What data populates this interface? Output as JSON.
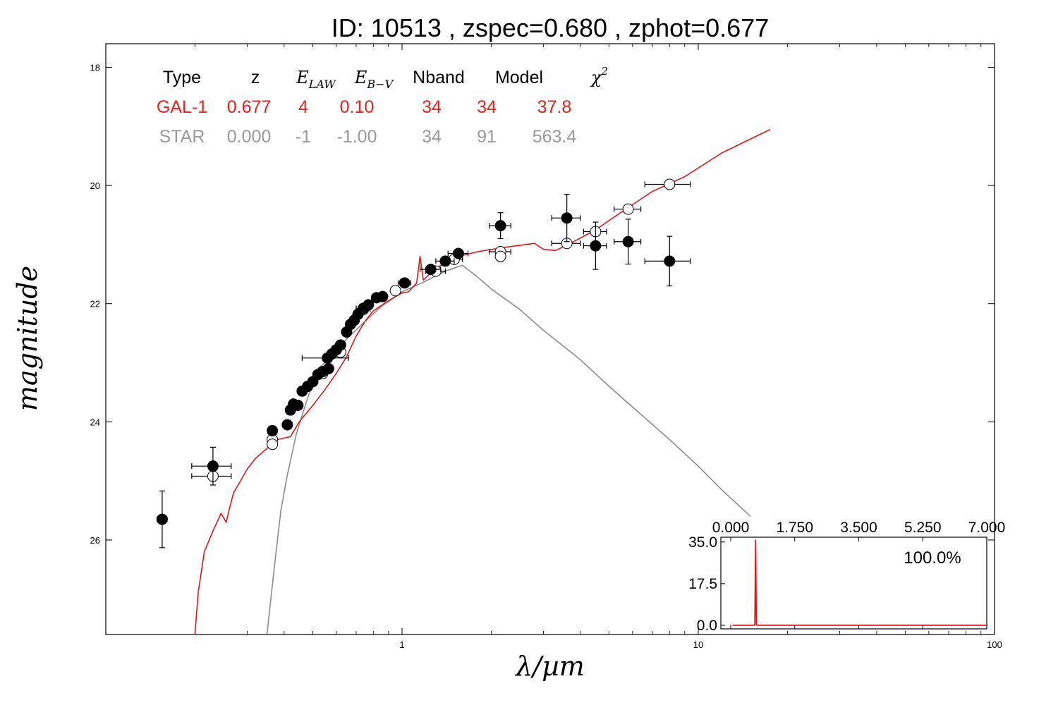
{
  "chart_data": [
    {
      "type": "scatter",
      "title": "ID:  10513 , zspec=0.680 , zphot=0.677",
      "xlabel": "λ/µm",
      "ylabel": "magnitude",
      "xscale": "log",
      "xlim": [
        0.1,
        100
      ],
      "ylim": [
        27.6,
        17.6
      ],
      "y_inverted": true,
      "x_ticks": [
        {
          "v": 1,
          "label": "1"
        },
        {
          "v": 10,
          "label": "10"
        },
        {
          "v": 100,
          "label": "100"
        }
      ],
      "y_ticks": [
        {
          "v": 18,
          "label": "18"
        },
        {
          "v": 20,
          "label": "20"
        },
        {
          "v": 22,
          "label": "22"
        },
        {
          "v": 24,
          "label": "24"
        },
        {
          "v": 26,
          "label": "26"
        }
      ],
      "legend_table": {
        "headers": [
          "Type",
          "z",
          "E_LAW",
          "E_B−V",
          "Nband",
          "Model",
          "χ2"
        ],
        "rows": [
          {
            "cells": [
              "GAL-1",
              "0.677",
              "4",
              "0.10",
              "34",
              "34",
              "37.8"
            ],
            "color": "#e8221f"
          },
          {
            "cells": [
              "STAR",
              "0.000",
              "-1",
              "-1.00",
              "34",
              "91",
              "563.4"
            ],
            "color": "#999999"
          }
        ]
      },
      "series": [
        {
          "kind": "galaxy_model_line",
          "color": "#d7191c",
          "points": [
            [
              0.2,
              27.6
            ],
            [
              0.205,
              26.9
            ],
            [
              0.215,
              26.2
            ],
            [
              0.23,
              25.85
            ],
            [
              0.245,
              25.55
            ],
            [
              0.255,
              25.7
            ],
            [
              0.262,
              25.45
            ],
            [
              0.27,
              25.2
            ],
            [
              0.285,
              25.0
            ],
            [
              0.3,
              24.8
            ],
            [
              0.32,
              24.62
            ],
            [
              0.35,
              24.45
            ],
            [
              0.38,
              24.3
            ],
            [
              0.42,
              24.25
            ],
            [
              0.45,
              24.0
            ],
            [
              0.5,
              23.72
            ],
            [
              0.55,
              23.45
            ],
            [
              0.6,
              23.18
            ],
            [
              0.65,
              22.9
            ],
            [
              0.7,
              22.55
            ],
            [
              0.75,
              22.3
            ],
            [
              0.8,
              22.12
            ],
            [
              0.9,
              21.95
            ],
            [
              1.0,
              21.82
            ],
            [
              1.05,
              21.8
            ],
            [
              1.12,
              21.65
            ],
            [
              1.15,
              21.2
            ],
            [
              1.18,
              21.6
            ],
            [
              1.3,
              21.4
            ],
            [
              1.5,
              21.22
            ],
            [
              1.8,
              21.12
            ],
            [
              2.2,
              21.05
            ],
            [
              2.8,
              20.98
            ],
            [
              3.0,
              21.08
            ],
            [
              3.3,
              21.1
            ],
            [
              3.8,
              20.95
            ],
            [
              4.5,
              20.75
            ],
            [
              5.5,
              20.45
            ],
            [
              7.0,
              20.1
            ],
            [
              9.0,
              19.85
            ],
            [
              12.0,
              19.45
            ],
            [
              17.5,
              19.05
            ]
          ]
        },
        {
          "kind": "star_model_line",
          "color": "#8c8c8c",
          "points": [
            [
              0.35,
              27.6
            ],
            [
              0.37,
              26.5
            ],
            [
              0.39,
              25.5
            ],
            [
              0.41,
              24.9
            ],
            [
              0.44,
              24.2
            ],
            [
              0.48,
              23.6
            ],
            [
              0.52,
              23.1
            ],
            [
              0.58,
              22.9
            ],
            [
              0.65,
              22.6
            ],
            [
              0.75,
              22.3
            ],
            [
              0.85,
              22.05
            ],
            [
              1.0,
              21.8
            ],
            [
              1.2,
              21.62
            ],
            [
              1.4,
              21.45
            ],
            [
              1.6,
              21.35
            ],
            [
              1.8,
              21.55
            ],
            [
              2.0,
              21.75
            ],
            [
              2.5,
              22.1
            ],
            [
              3.0,
              22.45
            ],
            [
              4.0,
              22.95
            ],
            [
              5.0,
              23.4
            ],
            [
              6.0,
              23.75
            ],
            [
              8.0,
              24.3
            ],
            [
              10.0,
              24.75
            ],
            [
              12.0,
              25.15
            ],
            [
              15.0,
              25.6
            ]
          ]
        },
        {
          "kind": "observed_filled",
          "color": "#000000",
          "points": [
            {
              "x": 0.155,
              "y": 25.65,
              "xerr": 0.006,
              "yerr": 0.48
            },
            {
              "x": 0.23,
              "y": 24.75,
              "xerr": 0.035,
              "yerr": 0.32
            },
            {
              "x": 0.365,
              "y": 24.15,
              "xerr": 0.01,
              "yerr": 0.08
            },
            {
              "x": 0.41,
              "y": 24.05,
              "xerr": 0.01,
              "yerr": 0.07
            },
            {
              "x": 0.42,
              "y": 23.8,
              "xerr": 0.01,
              "yerr": 0.06
            },
            {
              "x": 0.43,
              "y": 23.7,
              "xerr": 0.01,
              "yerr": 0.06
            },
            {
              "x": 0.445,
              "y": 23.72,
              "xerr": 0.01,
              "yerr": 0.06
            },
            {
              "x": 0.46,
              "y": 23.48,
              "xerr": 0.01,
              "yerr": 0.05
            },
            {
              "x": 0.48,
              "y": 23.4,
              "xerr": 0.01,
              "yerr": 0.05
            },
            {
              "x": 0.5,
              "y": 23.32,
              "xerr": 0.01,
              "yerr": 0.05
            },
            {
              "x": 0.52,
              "y": 23.2,
              "xerr": 0.01,
              "yerr": 0.05
            },
            {
              "x": 0.54,
              "y": 23.15,
              "xerr": 0.01,
              "yerr": 0.05
            },
            {
              "x": 0.56,
              "y": 22.92,
              "xerr": 0.1,
              "yerr": 0.05
            },
            {
              "x": 0.565,
              "y": 23.1,
              "xerr": 0.01,
              "yerr": 0.05
            },
            {
              "x": 0.58,
              "y": 22.85,
              "xerr": 0.01,
              "yerr": 0.05
            },
            {
              "x": 0.6,
              "y": 22.78,
              "xerr": 0.01,
              "yerr": 0.05
            },
            {
              "x": 0.62,
              "y": 22.7,
              "xerr": 0.01,
              "yerr": 0.05
            },
            {
              "x": 0.65,
              "y": 22.48,
              "xerr": 0.01,
              "yerr": 0.05
            },
            {
              "x": 0.67,
              "y": 22.35,
              "xerr": 0.01,
              "yerr": 0.05
            },
            {
              "x": 0.69,
              "y": 22.28,
              "xerr": 0.01,
              "yerr": 0.05
            },
            {
              "x": 0.71,
              "y": 22.18,
              "xerr": 0.01,
              "yerr": 0.05
            },
            {
              "x": 0.74,
              "y": 22.08,
              "xerr": 0.04,
              "yerr": 0.05
            },
            {
              "x": 0.77,
              "y": 22.02,
              "xerr": 0.01,
              "yerr": 0.05
            },
            {
              "x": 0.82,
              "y": 21.9,
              "xerr": 0.02,
              "yerr": 0.05
            },
            {
              "x": 0.86,
              "y": 21.88,
              "xerr": 0.02,
              "yerr": 0.05
            },
            {
              "x": 1.02,
              "y": 21.65,
              "xerr": 0.05,
              "yerr": 0.05
            },
            {
              "x": 1.25,
              "y": 21.42,
              "xerr": 0.1,
              "yerr": 0.05
            },
            {
              "x": 1.4,
              "y": 21.28,
              "xerr": 0.1,
              "yerr": 0.05
            },
            {
              "x": 1.55,
              "y": 21.15,
              "xerr": 0.12,
              "yerr": 0.05
            },
            {
              "x": 2.15,
              "y": 20.68,
              "xerr": 0.18,
              "yerr": 0.22
            },
            {
              "x": 3.6,
              "y": 20.55,
              "xerr": 0.4,
              "yerr": 0.4
            },
            {
              "x": 4.5,
              "y": 21.02,
              "xerr": 0.4,
              "yerr": 0.4
            },
            {
              "x": 5.8,
              "y": 20.95,
              "xerr": 0.6,
              "yerr": 0.38
            },
            {
              "x": 8.0,
              "y": 21.28,
              "xerr": 1.4,
              "yerr": 0.42
            }
          ]
        },
        {
          "kind": "model_open",
          "color": "#000000",
          "points": [
            {
              "x": 0.23,
              "y": 24.92,
              "xerr": 0.035,
              "yerr": 0.08
            },
            {
              "x": 0.365,
              "y": 24.3,
              "xerr": 0.01,
              "yerr": 0.05
            },
            {
              "x": 0.365,
              "y": 24.38,
              "xerr": 0,
              "yerr": 0
            },
            {
              "x": 0.43,
              "y": 23.72,
              "xerr": 0.01,
              "yerr": 0.03
            },
            {
              "x": 0.54,
              "y": 23.18,
              "xerr": 0.01,
              "yerr": 0.03
            },
            {
              "x": 0.62,
              "y": 22.82,
              "xerr": 0.01,
              "yerr": 0.03
            },
            {
              "x": 0.74,
              "y": 22.1,
              "xerr": 0.04,
              "yerr": 0.03
            },
            {
              "x": 0.95,
              "y": 21.78,
              "xerr": 0.03,
              "yerr": 0.03
            },
            {
              "x": 1.3,
              "y": 21.45,
              "xerr": 0.1,
              "yerr": 0.03
            },
            {
              "x": 1.5,
              "y": 21.25,
              "xerr": 0.1,
              "yerr": 0.03
            },
            {
              "x": 2.15,
              "y": 21.12,
              "xerr": 0.18,
              "yerr": 0.05
            },
            {
              "x": 2.15,
              "y": 21.2,
              "xerr": 0,
              "yerr": 0
            },
            {
              "x": 3.6,
              "y": 20.98,
              "xerr": 0.4,
              "yerr": 0.03
            },
            {
              "x": 4.5,
              "y": 20.78,
              "xerr": 0.4,
              "yerr": 0.03
            },
            {
              "x": 5.8,
              "y": 20.4,
              "xerr": 0.6,
              "yerr": 0.03
            },
            {
              "x": 8.0,
              "y": 19.98,
              "xerr": 1.4,
              "yerr": 0.03
            }
          ]
        }
      ]
    },
    {
      "type": "line",
      "inset": true,
      "xlim": [
        0,
        7
      ],
      "ylim": [
        -1.5,
        37
      ],
      "x_ticks": [
        {
          "v": 0,
          "label": "0.000"
        },
        {
          "v": 1.75,
          "label": "1.750"
        },
        {
          "v": 3.5,
          "label": "3.500"
        },
        {
          "v": 5.25,
          "label": "5.250"
        },
        {
          "v": 7,
          "label": "7.000"
        }
      ],
      "y_ticks": [
        {
          "v": 0,
          "label": "0.0"
        },
        {
          "v": 17.5,
          "label": "17.5"
        },
        {
          "v": 35,
          "label": "35.0"
        }
      ],
      "annotation": "100.0%",
      "series": [
        {
          "color": "#d7191c",
          "points": [
            [
              0.05,
              0
            ],
            [
              0.64,
              0
            ],
            [
              0.66,
              0.5
            ],
            [
              0.68,
              36
            ],
            [
              0.7,
              0.5
            ],
            [
              0.72,
              0
            ],
            [
              7.0,
              0
            ]
          ]
        }
      ]
    }
  ]
}
